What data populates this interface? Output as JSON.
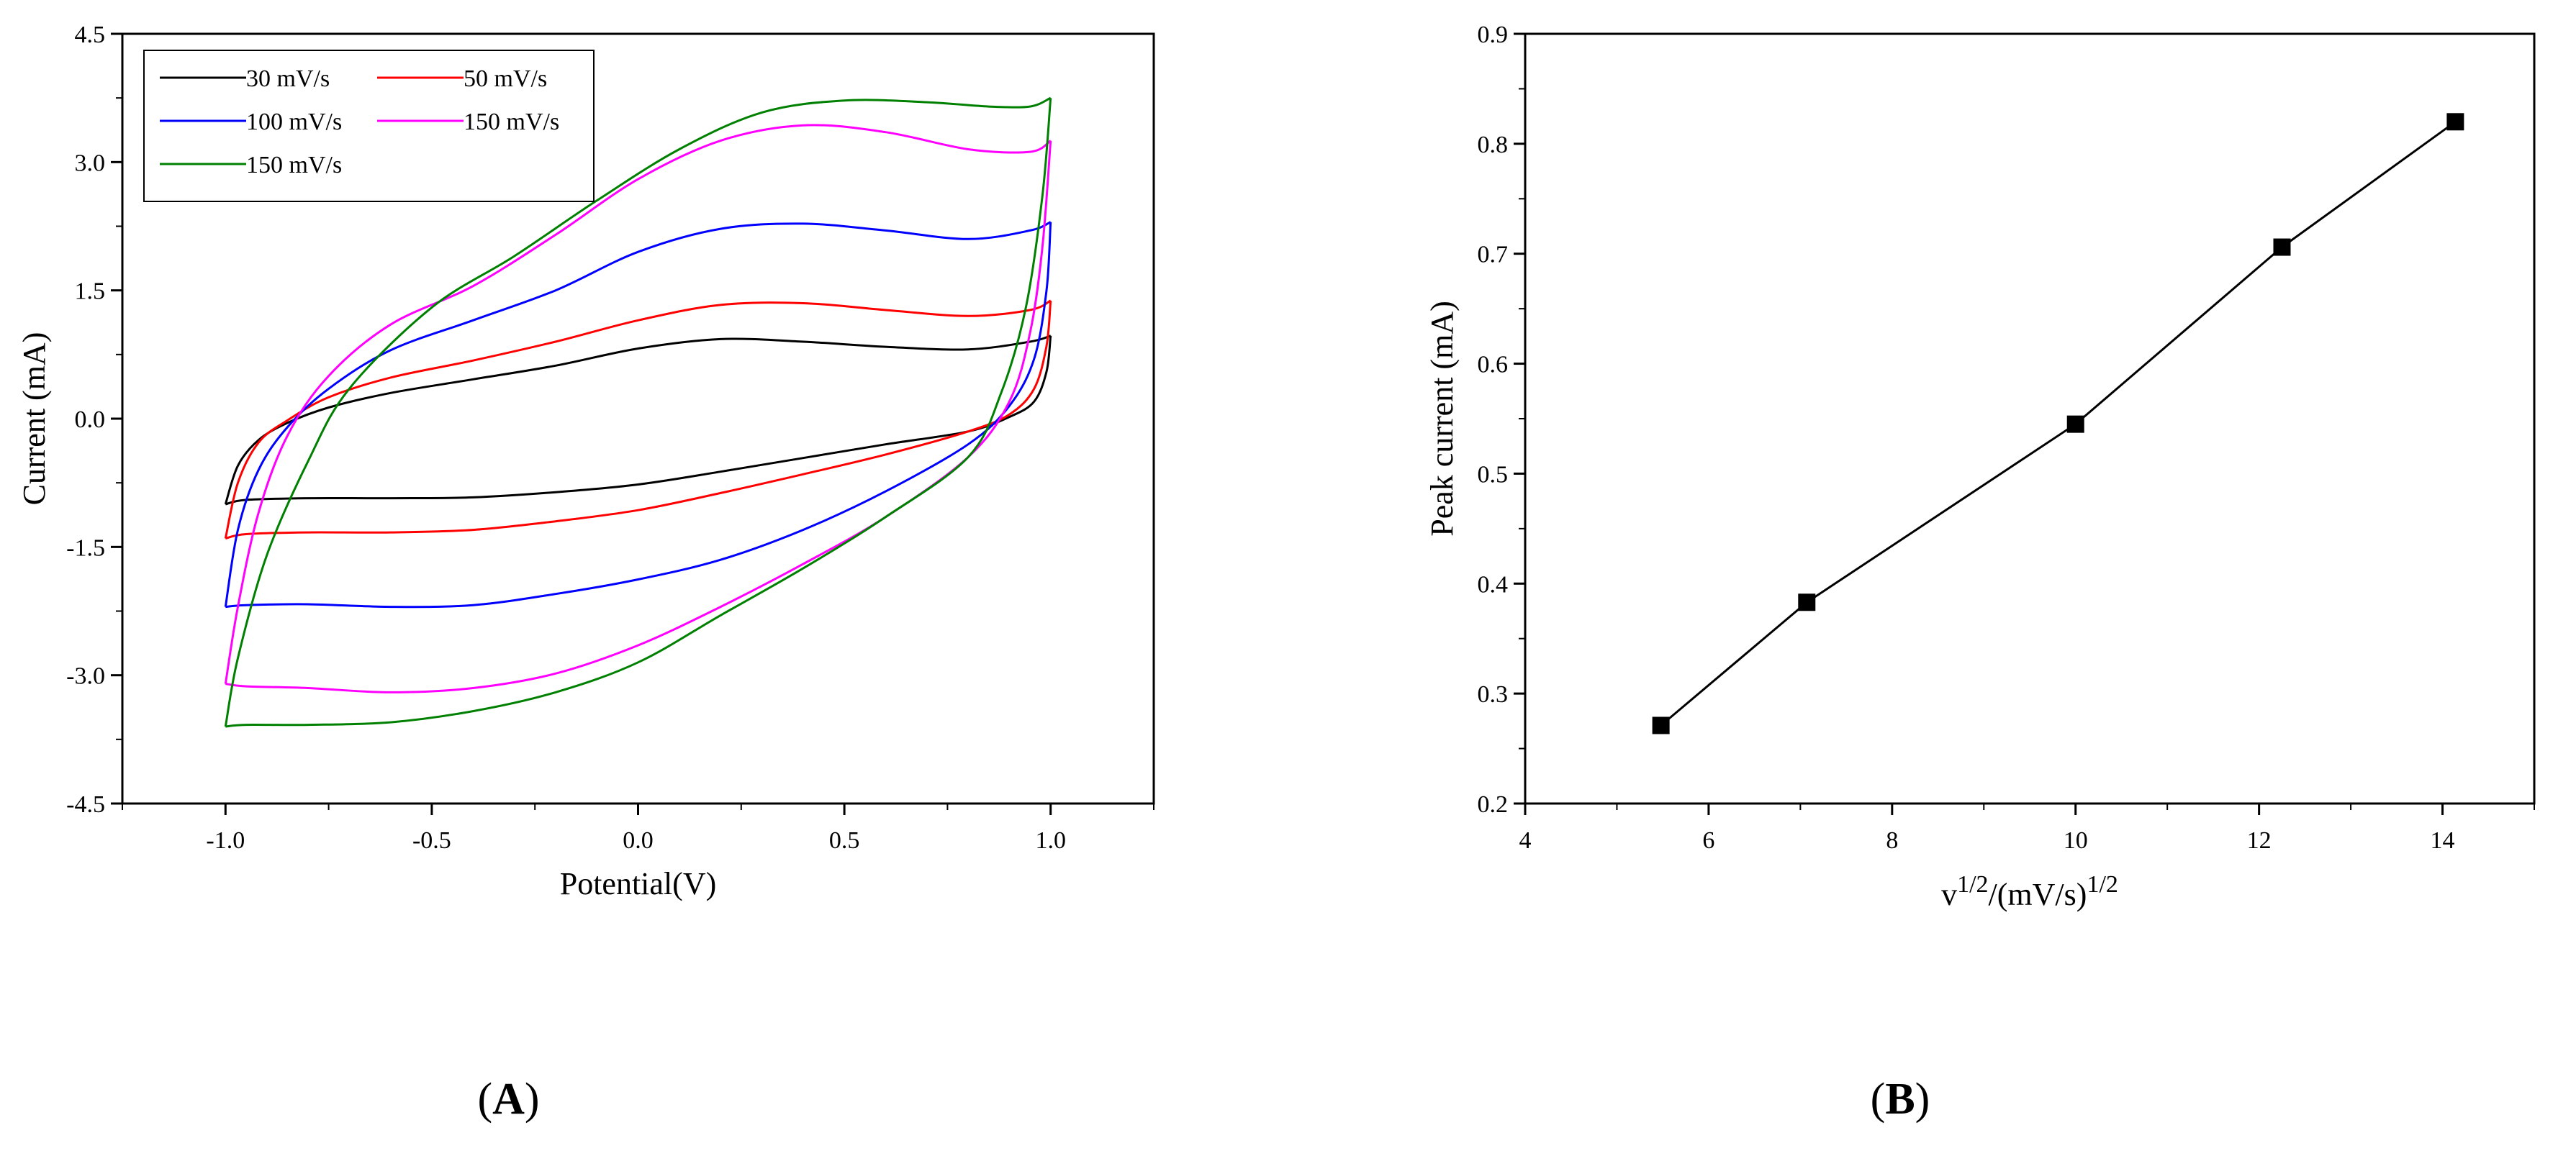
{
  "chart_data": [
    {
      "panel_label": "A",
      "type": "line",
      "xlabel": "Potential(V)",
      "ylabel": "Current (mA)",
      "xlim": [
        -1.25,
        1.25
      ],
      "ylim": [
        -4.5,
        4.5
      ],
      "x_ticks": [
        -1.0,
        -0.5,
        0.0,
        0.5,
        1.0
      ],
      "x_tick_labels": [
        "-1.0",
        "-0.5",
        "0.0",
        "0.5",
        "1.0"
      ],
      "y_ticks": [
        -4.5,
        -3.0,
        -1.5,
        0.0,
        1.5,
        3.0,
        4.5
      ],
      "y_tick_labels": [
        "-4.5",
        "-3.0",
        "-1.5",
        "0.0",
        "1.5",
        "3.0",
        "4.5"
      ],
      "legend_position": "top-left",
      "series": [
        {
          "name": "30 mV/s",
          "color": "#000000",
          "upper": [
            [
              -1.0,
              -1.0
            ],
            [
              -0.97,
              -0.55
            ],
            [
              -0.92,
              -0.25
            ],
            [
              -0.85,
              -0.05
            ],
            [
              -0.75,
              0.13
            ],
            [
              -0.6,
              0.3
            ],
            [
              -0.4,
              0.46
            ],
            [
              -0.2,
              0.62
            ],
            [
              0.0,
              0.82
            ],
            [
              0.2,
              0.93
            ],
            [
              0.4,
              0.9
            ],
            [
              0.6,
              0.84
            ],
            [
              0.8,
              0.81
            ],
            [
              0.95,
              0.9
            ],
            [
              1.0,
              0.97
            ]
          ],
          "lower": [
            [
              1.0,
              0.97
            ],
            [
              0.99,
              0.55
            ],
            [
              0.96,
              0.2
            ],
            [
              0.9,
              0.02
            ],
            [
              0.8,
              -0.15
            ],
            [
              0.6,
              -0.3
            ],
            [
              0.4,
              -0.46
            ],
            [
              0.2,
              -0.62
            ],
            [
              0.0,
              -0.77
            ],
            [
              -0.2,
              -0.86
            ],
            [
              -0.4,
              -0.92
            ],
            [
              -0.6,
              -0.93
            ],
            [
              -0.8,
              -0.93
            ],
            [
              -0.95,
              -0.95
            ],
            [
              -1.0,
              -1.0
            ]
          ]
        },
        {
          "name": "50 mV/s",
          "color": "#ff0000",
          "upper": [
            [
              -1.0,
              -1.4
            ],
            [
              -0.97,
              -0.75
            ],
            [
              -0.92,
              -0.28
            ],
            [
              -0.85,
              -0.02
            ],
            [
              -0.75,
              0.25
            ],
            [
              -0.6,
              0.48
            ],
            [
              -0.4,
              0.68
            ],
            [
              -0.2,
              0.9
            ],
            [
              0.0,
              1.15
            ],
            [
              0.2,
              1.33
            ],
            [
              0.4,
              1.35
            ],
            [
              0.6,
              1.27
            ],
            [
              0.8,
              1.2
            ],
            [
              0.95,
              1.27
            ],
            [
              1.0,
              1.38
            ]
          ],
          "lower": [
            [
              1.0,
              1.38
            ],
            [
              0.99,
              0.85
            ],
            [
              0.96,
              0.35
            ],
            [
              0.9,
              0.05
            ],
            [
              0.8,
              -0.15
            ],
            [
              0.6,
              -0.42
            ],
            [
              0.4,
              -0.65
            ],
            [
              0.2,
              -0.87
            ],
            [
              0.0,
              -1.07
            ],
            [
              -0.2,
              -1.2
            ],
            [
              -0.4,
              -1.3
            ],
            [
              -0.6,
              -1.33
            ],
            [
              -0.8,
              -1.33
            ],
            [
              -0.95,
              -1.35
            ],
            [
              -1.0,
              -1.4
            ]
          ]
        },
        {
          "name": "100 mV/s",
          "color": "#0000ff",
          "upper": [
            [
              -1.0,
              -2.2
            ],
            [
              -0.97,
              -1.3
            ],
            [
              -0.92,
              -0.6
            ],
            [
              -0.85,
              -0.1
            ],
            [
              -0.75,
              0.35
            ],
            [
              -0.6,
              0.8
            ],
            [
              -0.4,
              1.15
            ],
            [
              -0.2,
              1.5
            ],
            [
              0.0,
              1.95
            ],
            [
              0.2,
              2.22
            ],
            [
              0.4,
              2.28
            ],
            [
              0.6,
              2.2
            ],
            [
              0.8,
              2.1
            ],
            [
              0.95,
              2.2
            ],
            [
              1.0,
              2.3
            ]
          ],
          "lower": [
            [
              1.0,
              2.3
            ],
            [
              0.99,
              1.5
            ],
            [
              0.96,
              0.7
            ],
            [
              0.9,
              0.15
            ],
            [
              0.8,
              -0.3
            ],
            [
              0.6,
              -0.85
            ],
            [
              0.4,
              -1.3
            ],
            [
              0.2,
              -1.65
            ],
            [
              0.0,
              -1.88
            ],
            [
              -0.2,
              -2.05
            ],
            [
              -0.4,
              -2.18
            ],
            [
              -0.6,
              -2.2
            ],
            [
              -0.8,
              -2.17
            ],
            [
              -0.95,
              -2.18
            ],
            [
              -1.0,
              -2.2
            ]
          ]
        },
        {
          "name": "150 mV/s",
          "color": "#ff00ff",
          "upper": [
            [
              -1.0,
              -3.1
            ],
            [
              -0.97,
              -2.2
            ],
            [
              -0.92,
              -1.1
            ],
            [
              -0.85,
              -0.2
            ],
            [
              -0.75,
              0.5
            ],
            [
              -0.6,
              1.1
            ],
            [
              -0.4,
              1.55
            ],
            [
              -0.2,
              2.15
            ],
            [
              0.0,
              2.8
            ],
            [
              0.2,
              3.25
            ],
            [
              0.4,
              3.43
            ],
            [
              0.6,
              3.35
            ],
            [
              0.8,
              3.15
            ],
            [
              0.95,
              3.12
            ],
            [
              1.0,
              3.25
            ]
          ],
          "lower": [
            [
              1.0,
              3.25
            ],
            [
              0.98,
              2.0
            ],
            [
              0.95,
              1.0
            ],
            [
              0.9,
              0.2
            ],
            [
              0.8,
              -0.45
            ],
            [
              0.6,
              -1.15
            ],
            [
              0.4,
              -1.7
            ],
            [
              0.2,
              -2.2
            ],
            [
              0.0,
              -2.65
            ],
            [
              -0.2,
              -2.98
            ],
            [
              -0.4,
              -3.15
            ],
            [
              -0.6,
              -3.2
            ],
            [
              -0.8,
              -3.15
            ],
            [
              -0.95,
              -3.13
            ],
            [
              -1.0,
              -3.1
            ]
          ]
        },
        {
          "name": "150 mV/s",
          "color": "#008000",
          "upper": [
            [
              -1.0,
              -3.6
            ],
            [
              -0.97,
              -2.8
            ],
            [
              -0.9,
              -1.6
            ],
            [
              -0.8,
              -0.5
            ],
            [
              -0.7,
              0.35
            ],
            [
              -0.5,
              1.3
            ],
            [
              -0.3,
              1.9
            ],
            [
              -0.1,
              2.55
            ],
            [
              0.1,
              3.15
            ],
            [
              0.3,
              3.58
            ],
            [
              0.5,
              3.72
            ],
            [
              0.7,
              3.7
            ],
            [
              0.85,
              3.65
            ],
            [
              0.95,
              3.65
            ],
            [
              1.0,
              3.75
            ]
          ],
          "lower": [
            [
              1.0,
              3.75
            ],
            [
              0.98,
              2.6
            ],
            [
              0.94,
              1.3
            ],
            [
              0.88,
              0.3
            ],
            [
              0.8,
              -0.45
            ],
            [
              0.6,
              -1.15
            ],
            [
              0.4,
              -1.75
            ],
            [
              0.2,
              -2.3
            ],
            [
              0.0,
              -2.85
            ],
            [
              -0.2,
              -3.2
            ],
            [
              -0.4,
              -3.42
            ],
            [
              -0.6,
              -3.55
            ],
            [
              -0.8,
              -3.58
            ],
            [
              -0.95,
              -3.58
            ],
            [
              -1.0,
              -3.6
            ]
          ]
        }
      ]
    },
    {
      "panel_label": "B",
      "type": "line",
      "xlabel_main": "v",
      "xlabel_sup1": "1/2",
      "xlabel_mid": "/(mV/s)",
      "xlabel_sup2": "1/2",
      "ylabel": "Peak current (mA)",
      "xlim": [
        4,
        15
      ],
      "ylim": [
        0.2,
        0.9
      ],
      "x_ticks": [
        4,
        6,
        8,
        10,
        12,
        14
      ],
      "x_tick_labels": [
        "4",
        "6",
        "8",
        "10",
        "12",
        "14"
      ],
      "y_ticks": [
        0.2,
        0.3,
        0.4,
        0.5,
        0.6,
        0.7,
        0.8,
        0.9
      ],
      "y_tick_labels": [
        "0.2",
        "0.3",
        "0.4",
        "0.5",
        "0.6",
        "0.7",
        "0.8",
        "0.9"
      ],
      "marker": "square",
      "color": "#000000",
      "x": [
        5.48,
        7.07,
        10.0,
        12.25,
        14.14
      ],
      "y": [
        0.271,
        0.383,
        0.545,
        0.706,
        0.82
      ]
    }
  ]
}
